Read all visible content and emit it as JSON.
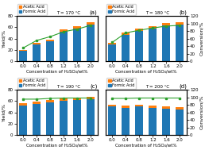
{
  "chart_data": [
    {
      "type": "bar",
      "stacked": true,
      "title": "(a)",
      "annotations": [
        "T = 170 °C"
      ],
      "categories": [
        "0.0",
        "0.4",
        "0.8",
        "1.2",
        "1.6",
        "2.0"
      ],
      "x_label": "Concentration of H₂SO₄/wt%",
      "y_label": "Yield/%",
      "ylim": [
        0,
        80
      ],
      "yticks": [
        0,
        20,
        40,
        60,
        80
      ],
      "y2lim": [
        0,
        120
      ],
      "legend": "upper left",
      "series": [
        {
          "name": "Formic Acid",
          "color": "#1f77b4",
          "values": [
            18,
            30,
            35,
            52,
            58,
            65
          ]
        },
        {
          "name": "Acetic Acid",
          "color": "#ff7f0e",
          "values": [
            2,
            3,
            3,
            4,
            4,
            4
          ]
        },
        {
          "type": "line",
          "axis": "y2",
          "color": "#2ca02c",
          "marker": "square",
          "line_style": "solid",
          "values": [
            35,
            55,
            65,
            78,
            85,
            95
          ]
        }
      ]
    },
    {
      "type": "bar",
      "stacked": true,
      "title": "(b)",
      "annotations": [
        "T = 180 °C"
      ],
      "categories": [
        "0.0",
        "0.4",
        "0.8",
        "1.2",
        "1.6",
        "2.0"
      ],
      "x_label": "Concentration of H₂SO₄/wt%",
      "y2_label": "Conversion/%",
      "ylim": [
        0,
        80
      ],
      "y2lim": [
        0,
        120
      ],
      "y2ticks": [
        0,
        20,
        40,
        60,
        80,
        100,
        120
      ],
      "legend": "upper left",
      "series": [
        {
          "name": "Formic Acid",
          "color": "#1f77b4",
          "values": [
            30,
            47,
            53,
            58,
            63,
            65
          ]
        },
        {
          "name": "Acetic Acid",
          "color": "#ff7f0e",
          "values": [
            3,
            4,
            4,
            4,
            4,
            4
          ]
        },
        {
          "type": "line",
          "axis": "y2",
          "color": "#2ca02c",
          "marker": "square",
          "line_style": "solid",
          "values": [
            50,
            75,
            82,
            88,
            93,
            95
          ]
        }
      ]
    },
    {
      "type": "bar",
      "stacked": true,
      "title": "(c)",
      "annotations": [
        "T = 190 °C"
      ],
      "categories": [
        "0.0",
        "0.4",
        "0.8",
        "1.2",
        "1.6",
        "2.0"
      ],
      "x_label": "Concentration of H₂SO₄/wt%",
      "y_label": "Yield/%",
      "ylim": [
        0,
        80
      ],
      "yticks": [
        0,
        20,
        40,
        60,
        80
      ],
      "y2lim": [
        0,
        120
      ],
      "legend": "upper left",
      "series": [
        {
          "name": "Formic Acid",
          "color": "#1f77b4",
          "values": [
            52,
            55,
            58,
            60,
            62,
            63
          ]
        },
        {
          "name": "Acetic Acid",
          "color": "#ff7f0e",
          "values": [
            4,
            4,
            4,
            4,
            4,
            4
          ]
        },
        {
          "type": "line",
          "axis": "y2",
          "color": "#2ca02c",
          "marker": "square",
          "line_style": "solid",
          "values": [
            95,
            95,
            97,
            98,
            98,
            98
          ]
        }
      ]
    },
    {
      "type": "bar",
      "stacked": true,
      "title": "(d)",
      "annotations": [
        "T = 200 °C"
      ],
      "categories": [
        "0.0",
        "0.4",
        "0.8",
        "1.2",
        "1.6",
        "2.0"
      ],
      "x_label": "Concentration of H₂SO₄/wt%",
      "y2_label": "Conversion/%",
      "ylim": [
        0,
        80
      ],
      "y2lim": [
        0,
        120
      ],
      "y2ticks": [
        0,
        20,
        40,
        60,
        80,
        100,
        120
      ],
      "legend": "upper left",
      "series": [
        {
          "name": "Formic Acid",
          "color": "#1f77b4",
          "values": [
            50,
            48,
            50,
            48,
            46,
            45
          ]
        },
        {
          "name": "Acetic Acid",
          "color": "#ff7f0e",
          "values": [
            4,
            4,
            4,
            4,
            4,
            4
          ]
        },
        {
          "type": "line",
          "axis": "y2",
          "color": "#2ca02c",
          "marker": "square",
          "line_style": "solid",
          "values": [
            97,
            97,
            98,
            98,
            98,
            98
          ]
        }
      ]
    }
  ]
}
